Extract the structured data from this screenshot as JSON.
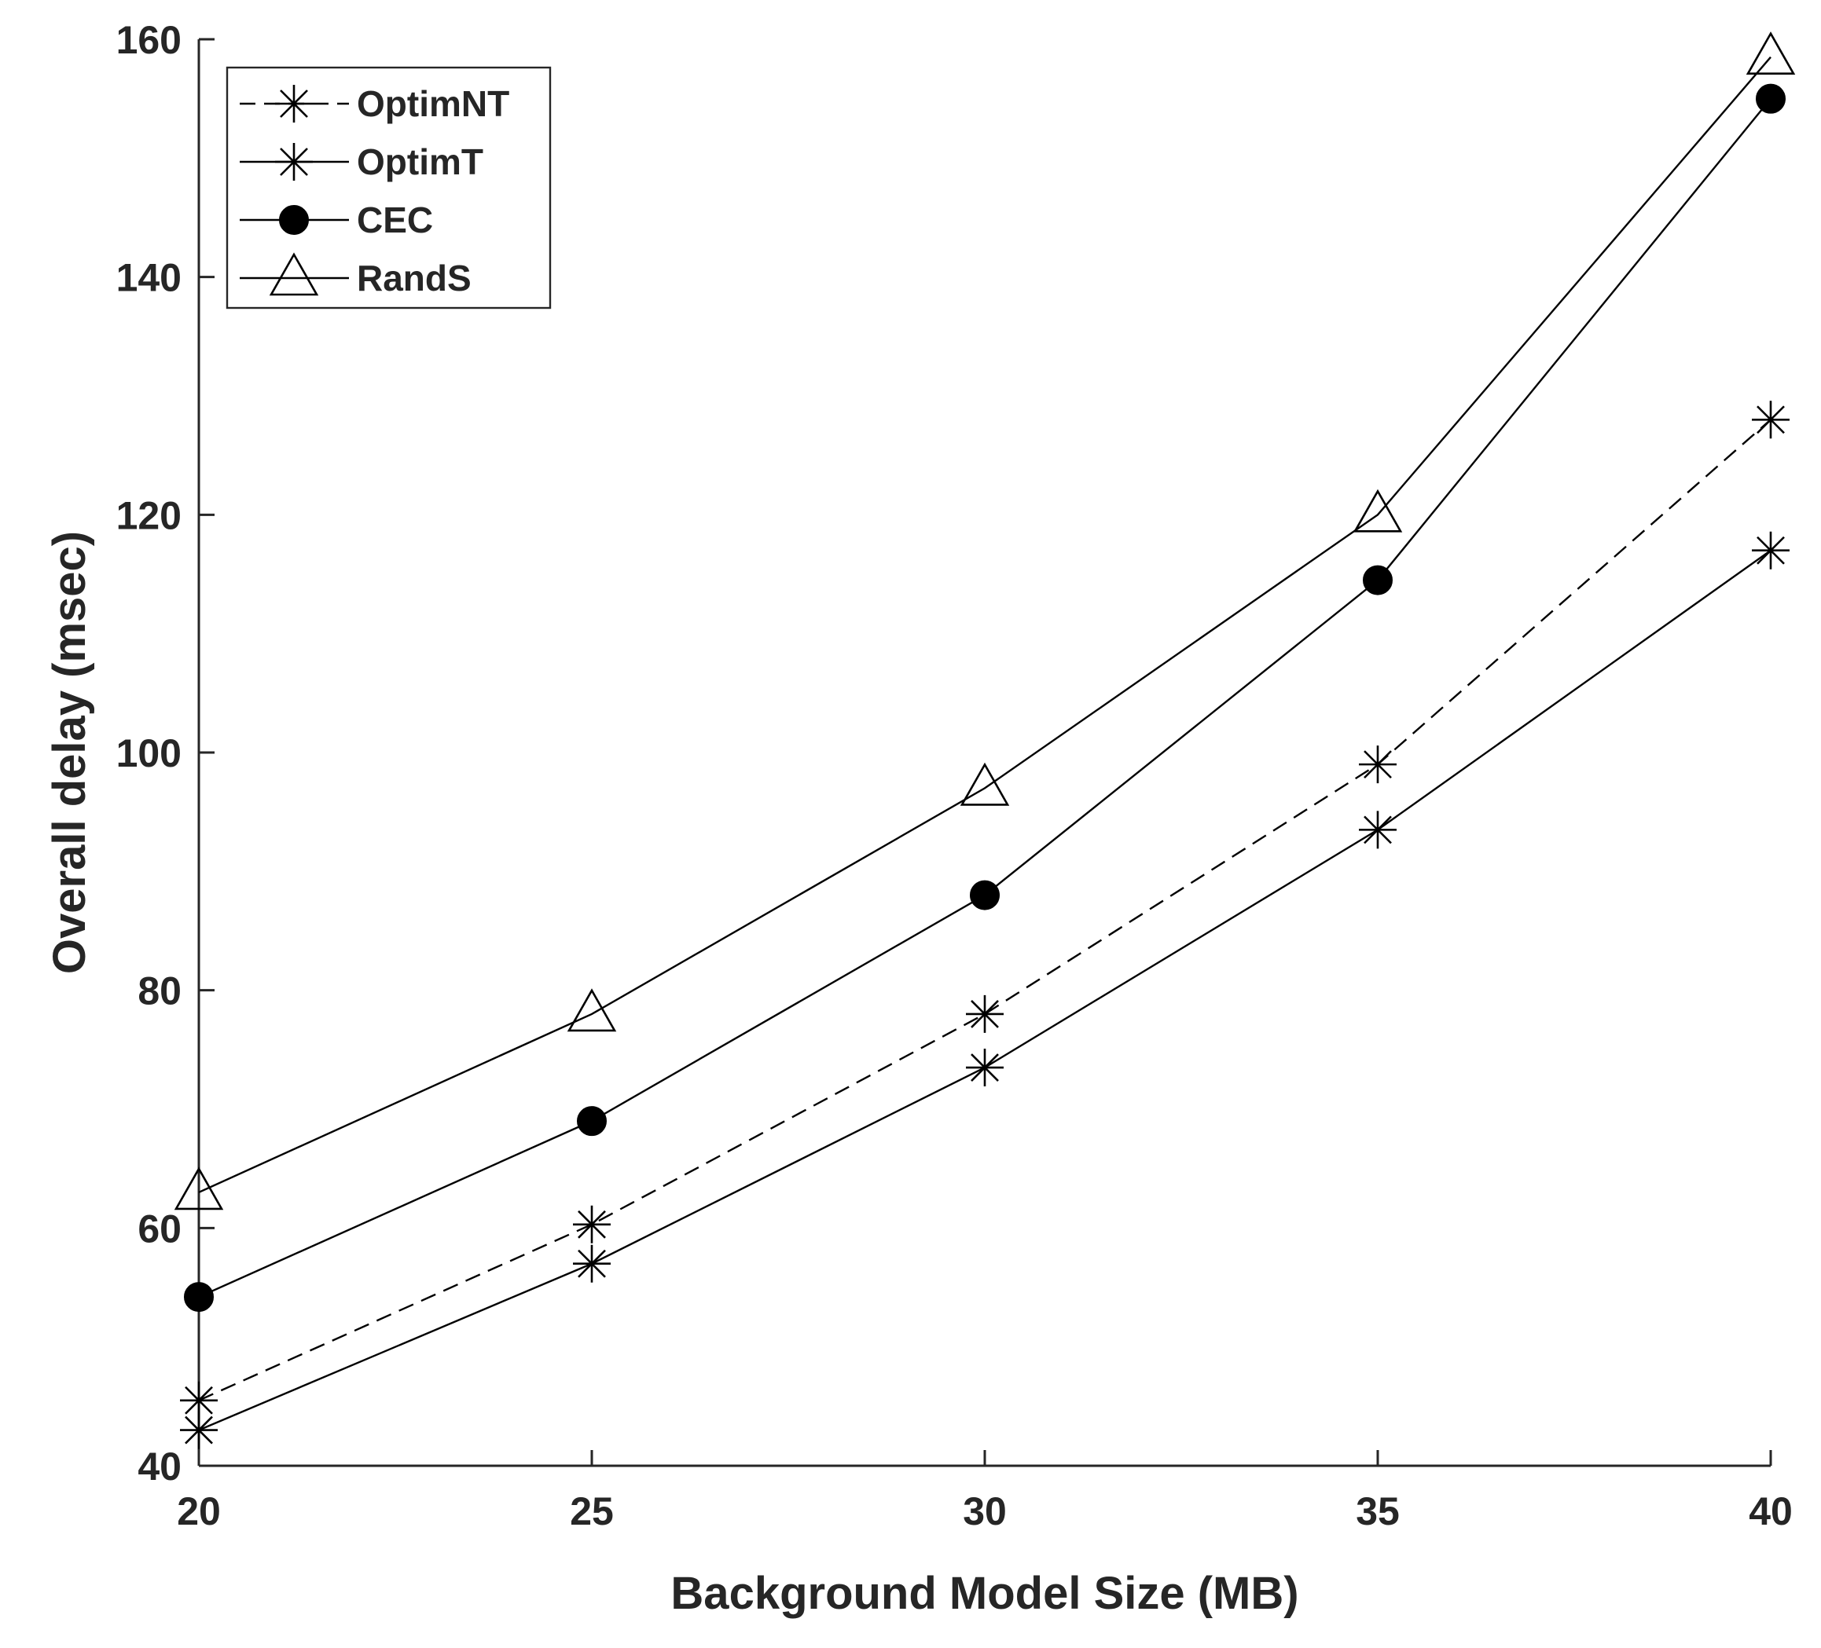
{
  "chart_data": {
    "type": "line",
    "title": "",
    "xlabel": "Background Model Size (MB)",
    "ylabel": "Overall delay (msec)",
    "x": [
      20,
      25,
      30,
      35,
      40
    ],
    "xlim": [
      20,
      40
    ],
    "ylim": [
      40,
      160
    ],
    "xticks": [
      "20",
      "25",
      "30",
      "35",
      "40"
    ],
    "yticks": [
      "40",
      "60",
      "80",
      "100",
      "120",
      "140",
      "160"
    ],
    "grid": false,
    "legend_position": "top-left",
    "series": [
      {
        "name": "OptimNT",
        "values": [
          45.5,
          60.3,
          78,
          99,
          128
        ],
        "line_style": "dashed",
        "marker": "asterisk",
        "color": "#000000"
      },
      {
        "name": "OptimT",
        "values": [
          43,
          57,
          73.5,
          93.5,
          117
        ],
        "line_style": "solid",
        "marker": "asterisk",
        "color": "#000000"
      },
      {
        "name": "CEC",
        "values": [
          54.2,
          69,
          88,
          114.5,
          155
        ],
        "line_style": "solid",
        "marker": "filled-circle",
        "color": "#000000"
      },
      {
        "name": "RandS",
        "values": [
          63,
          78,
          97,
          120,
          158.5
        ],
        "line_style": "solid",
        "marker": "open-triangle",
        "color": "#000000"
      }
    ]
  }
}
